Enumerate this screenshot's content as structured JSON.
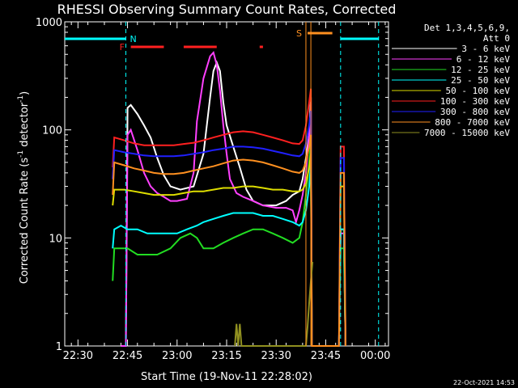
{
  "chart_data": {
    "type": "line",
    "title": "RHESSI Observing Summary Count Rates, Corrected",
    "xlabel": "Start Time (19-Nov-11 22:28:02)",
    "ylabel": "Corrected Count Rate (s⁻¹ detector⁻¹)",
    "ylabel_main": "Corrected Count Rate (s",
    "ylabel_sup1": "-1",
    "ylabel_mid": " detector",
    "ylabel_sup2": "-1",
    "ylabel_end": ")",
    "y_scale": "log",
    "ylim": [
      1,
      1000
    ],
    "xlim_minutes": [
      -2,
      96
    ],
    "x_tick_labels": [
      "22:30",
      "22:45",
      "23:00",
      "23:15",
      "23:30",
      "23:45",
      "00:00"
    ],
    "x_tick_minutes": [
      2,
      17,
      32,
      47,
      62,
      77,
      92
    ],
    "y_tick_labels": [
      "1",
      "10",
      "100",
      "1000"
    ],
    "y_tick_values": [
      1,
      10,
      100,
      1000
    ],
    "legend_header": [
      "Det 1,3,4,5,6,9,",
      "Att 0"
    ],
    "footer_date": "22-Oct-2021 14:53",
    "series": [
      {
        "name": "3 - 6 keV",
        "color": "#ffffff",
        "points": [
          [
            15,
            1
          ],
          [
            16.5,
            1
          ],
          [
            17,
            160
          ],
          [
            18,
            170
          ],
          [
            20,
            140
          ],
          [
            22,
            110
          ],
          [
            24,
            85
          ],
          [
            26,
            55
          ],
          [
            28,
            38
          ],
          [
            30,
            30
          ],
          [
            33,
            28
          ],
          [
            37,
            30
          ],
          [
            40,
            60
          ],
          [
            42,
            200
          ],
          [
            43,
            350
          ],
          [
            44,
            420
          ],
          [
            45,
            350
          ],
          [
            46,
            180
          ],
          [
            47,
            110
          ],
          [
            49,
            70
          ],
          [
            51,
            45
          ],
          [
            53,
            28
          ],
          [
            55,
            22
          ],
          [
            58,
            20
          ],
          [
            62,
            20
          ],
          [
            65,
            22
          ],
          [
            67,
            25
          ],
          [
            69,
            27
          ],
          [
            70,
            35
          ],
          [
            71,
            55
          ],
          [
            72,
            90
          ],
          [
            72.5,
            200
          ],
          [
            72.8,
            1
          ],
          [
            81,
            1
          ],
          [
            81.5,
            12
          ],
          [
            82.5,
            12
          ],
          [
            83,
            1
          ]
        ]
      },
      {
        "name": "6 - 12 keV",
        "color": "#ff40ff",
        "points": [
          [
            15,
            1
          ],
          [
            16.5,
            1
          ],
          [
            17,
            90
          ],
          [
            18,
            100
          ],
          [
            20,
            65
          ],
          [
            22,
            40
          ],
          [
            24,
            30
          ],
          [
            26,
            26
          ],
          [
            28,
            24
          ],
          [
            30,
            22
          ],
          [
            32,
            22
          ],
          [
            35,
            23
          ],
          [
            37,
            40
          ],
          [
            38,
            120
          ],
          [
            40,
            300
          ],
          [
            42,
            480
          ],
          [
            43,
            520
          ],
          [
            44,
            400
          ],
          [
            45,
            230
          ],
          [
            46,
            110
          ],
          [
            47,
            60
          ],
          [
            48,
            35
          ],
          [
            50,
            26
          ],
          [
            52,
            24
          ],
          [
            55,
            22
          ],
          [
            58,
            20
          ],
          [
            62,
            19
          ],
          [
            65,
            19
          ],
          [
            67,
            18
          ],
          [
            68,
            14
          ],
          [
            69,
            18
          ],
          [
            70,
            25
          ],
          [
            71,
            40
          ],
          [
            72,
            90
          ],
          [
            72.5,
            150
          ],
          [
            72.8,
            1
          ],
          [
            81,
            1
          ],
          [
            81.5,
            11
          ],
          [
            82.5,
            11
          ],
          [
            83,
            1
          ]
        ]
      },
      {
        "name": "12 - 25 keV",
        "color": "#22dd22",
        "points": [
          [
            12.5,
            4
          ],
          [
            13,
            8
          ],
          [
            15,
            8
          ],
          [
            17,
            8
          ],
          [
            20,
            7
          ],
          [
            23,
            7
          ],
          [
            26,
            7
          ],
          [
            30,
            8
          ],
          [
            33,
            10
          ],
          [
            36,
            11
          ],
          [
            38,
            10
          ],
          [
            40,
            8
          ],
          [
            43,
            8
          ],
          [
            46,
            9
          ],
          [
            49,
            10
          ],
          [
            52,
            11
          ],
          [
            55,
            12
          ],
          [
            58,
            12
          ],
          [
            61,
            11
          ],
          [
            64,
            10
          ],
          [
            67,
            9
          ],
          [
            69,
            10
          ],
          [
            70,
            14
          ],
          [
            71,
            25
          ],
          [
            72,
            50
          ],
          [
            72.5,
            80
          ],
          [
            72.8,
            1
          ],
          [
            81,
            1
          ],
          [
            81.5,
            8
          ],
          [
            82.5,
            8
          ],
          [
            83,
            1
          ]
        ]
      },
      {
        "name": "25 - 50 keV",
        "color": "#00ffff",
        "points": [
          [
            12.5,
            8
          ],
          [
            13,
            12
          ],
          [
            15,
            13
          ],
          [
            17,
            12
          ],
          [
            20,
            12
          ],
          [
            23,
            11
          ],
          [
            26,
            11
          ],
          [
            29,
            11
          ],
          [
            32,
            11
          ],
          [
            35,
            12
          ],
          [
            38,
            13
          ],
          [
            40,
            14
          ],
          [
            43,
            15
          ],
          [
            46,
            16
          ],
          [
            49,
            17
          ],
          [
            52,
            17
          ],
          [
            55,
            17
          ],
          [
            58,
            16
          ],
          [
            61,
            16
          ],
          [
            64,
            15
          ],
          [
            67,
            14
          ],
          [
            69,
            13
          ],
          [
            70,
            14
          ],
          [
            71,
            18
          ],
          [
            72,
            30
          ],
          [
            72.5,
            50
          ],
          [
            72.8,
            1
          ],
          [
            81,
            1
          ],
          [
            81.5,
            12
          ],
          [
            82.5,
            12
          ],
          [
            83,
            1
          ]
        ]
      },
      {
        "name": "50 - 100 keV",
        "color": "#dddd00",
        "points": [
          [
            12.5,
            20
          ],
          [
            13,
            28
          ],
          [
            16,
            28
          ],
          [
            19,
            27
          ],
          [
            22,
            26
          ],
          [
            25,
            25
          ],
          [
            28,
            25
          ],
          [
            31,
            25
          ],
          [
            34,
            26
          ],
          [
            37,
            27
          ],
          [
            40,
            27
          ],
          [
            43,
            28
          ],
          [
            46,
            29
          ],
          [
            49,
            29
          ],
          [
            52,
            30
          ],
          [
            55,
            30
          ],
          [
            58,
            29
          ],
          [
            61,
            28
          ],
          [
            64,
            28
          ],
          [
            67,
            27
          ],
          [
            69,
            27
          ],
          [
            70,
            28
          ],
          [
            71,
            32
          ],
          [
            72,
            45
          ],
          [
            72.5,
            60
          ],
          [
            72.8,
            1
          ],
          [
            81,
            1
          ],
          [
            81.5,
            30
          ],
          [
            82.5,
            30
          ],
          [
            83,
            1
          ]
        ]
      },
      {
        "name": "100 - 300 keV",
        "color": "#ff2020",
        "points": [
          [
            12.5,
            45
          ],
          [
            13,
            85
          ],
          [
            16,
            80
          ],
          [
            19,
            75
          ],
          [
            22,
            72
          ],
          [
            25,
            72
          ],
          [
            28,
            72
          ],
          [
            31,
            72
          ],
          [
            34,
            74
          ],
          [
            37,
            76
          ],
          [
            40,
            80
          ],
          [
            43,
            85
          ],
          [
            46,
            90
          ],
          [
            49,
            95
          ],
          [
            52,
            97
          ],
          [
            55,
            95
          ],
          [
            58,
            90
          ],
          [
            61,
            85
          ],
          [
            64,
            80
          ],
          [
            67,
            75
          ],
          [
            69,
            74
          ],
          [
            70,
            80
          ],
          [
            71,
            110
          ],
          [
            72,
            180
          ],
          [
            72.5,
            240
          ],
          [
            72.8,
            1
          ],
          [
            81,
            1
          ],
          [
            81.5,
            70
          ],
          [
            82.5,
            70
          ],
          [
            83,
            1
          ]
        ]
      },
      {
        "name": "300 - 800 keV",
        "color": "#2020ff",
        "points": [
          [
            12.5,
            35
          ],
          [
            13,
            65
          ],
          [
            16,
            62
          ],
          [
            19,
            60
          ],
          [
            22,
            58
          ],
          [
            25,
            57
          ],
          [
            28,
            57
          ],
          [
            31,
            57
          ],
          [
            34,
            58
          ],
          [
            37,
            60
          ],
          [
            40,
            62
          ],
          [
            43,
            65
          ],
          [
            46,
            67
          ],
          [
            49,
            70
          ],
          [
            52,
            70
          ],
          [
            55,
            69
          ],
          [
            58,
            67
          ],
          [
            61,
            64
          ],
          [
            64,
            61
          ],
          [
            67,
            58
          ],
          [
            69,
            57
          ],
          [
            70,
            60
          ],
          [
            71,
            75
          ],
          [
            72,
            110
          ],
          [
            72.5,
            150
          ],
          [
            72.8,
            1
          ],
          [
            81,
            1
          ],
          [
            81.5,
            55
          ],
          [
            82.5,
            55
          ],
          [
            83,
            1
          ]
        ]
      },
      {
        "name": "800 - 7000 keV",
        "color": "#ff9020",
        "points": [
          [
            12.5,
            25
          ],
          [
            13,
            50
          ],
          [
            16,
            47
          ],
          [
            19,
            44
          ],
          [
            22,
            42
          ],
          [
            25,
            40
          ],
          [
            28,
            39
          ],
          [
            31,
            39
          ],
          [
            34,
            40
          ],
          [
            37,
            42
          ],
          [
            40,
            44
          ],
          [
            43,
            46
          ],
          [
            46,
            49
          ],
          [
            49,
            52
          ],
          [
            52,
            53
          ],
          [
            55,
            52
          ],
          [
            58,
            50
          ],
          [
            61,
            47
          ],
          [
            64,
            44
          ],
          [
            67,
            41
          ],
          [
            69,
            40
          ],
          [
            70,
            42
          ],
          [
            71,
            50
          ],
          [
            72,
            70
          ],
          [
            72.5,
            90
          ],
          [
            72.8,
            1
          ],
          [
            81,
            1
          ],
          [
            81.5,
            40
          ],
          [
            82.5,
            40
          ],
          [
            83,
            1
          ]
        ]
      },
      {
        "name": "7000 - 15000 keV",
        "color": "#909020",
        "points": [
          [
            49.5,
            1
          ],
          [
            50,
            1.6
          ],
          [
            50.5,
            1
          ],
          [
            51,
            1.6
          ],
          [
            51.5,
            1
          ],
          [
            71,
            1
          ],
          [
            71.5,
            1.5
          ],
          [
            72,
            2.5
          ],
          [
            72.5,
            4
          ],
          [
            73,
            6
          ]
        ]
      }
    ],
    "annotations": [
      {
        "label": "F",
        "color": "#ff2020"
      },
      {
        "label": "N",
        "color": "#00ffff"
      },
      {
        "label": "S",
        "color": "#ff9020"
      }
    ],
    "flare_segments_minutes": [
      [
        18,
        28
      ],
      [
        34,
        44
      ],
      [
        57,
        58
      ]
    ],
    "night_segments_minutes": [
      [
        -2,
        16.5
      ],
      [
        81.5,
        93
      ]
    ],
    "saa_segment_minutes": [
      [
        71.5,
        79
      ]
    ],
    "saa_vlines_minutes": [
      71,
      72.5
    ],
    "night_vlines_minutes": [
      16.5,
      81.5,
      93
    ]
  }
}
